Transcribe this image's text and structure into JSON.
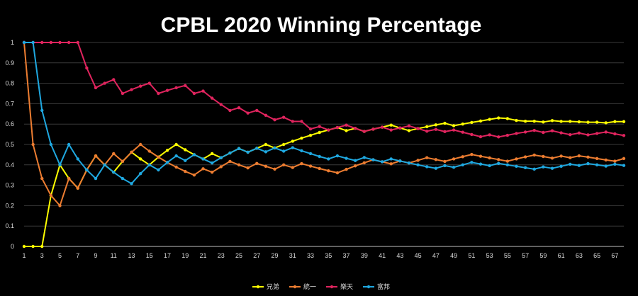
{
  "chart_data": {
    "type": "line",
    "title": "CPBL 2020 Winning Percentage",
    "xlabel": "",
    "ylabel": "",
    "ylim": [
      0,
      1
    ],
    "y_ticks": [
      "0",
      "0.1",
      "0.2",
      "0.3",
      "0.4",
      "0.5",
      "0.6",
      "0.7",
      "0.8",
      "0.9",
      "1"
    ],
    "x_ticks": [
      "1",
      "3",
      "5",
      "7",
      "9",
      "11",
      "13",
      "15",
      "17",
      "19",
      "21",
      "23",
      "25",
      "27",
      "29",
      "31",
      "33",
      "35",
      "37",
      "39",
      "41",
      "43",
      "45",
      "47",
      "49",
      "51",
      "53",
      "55",
      "57",
      "59",
      "61",
      "63",
      "65",
      "67"
    ],
    "x_count": 68,
    "grid": true,
    "legend_position": "bottom",
    "series": [
      {
        "name": "兄弟",
        "color": "#ffff00",
        "values": [
          0,
          0,
          0,
          0.25,
          0.4,
          0.333,
          0.286,
          0.375,
          0.444,
          0.4,
          0.364,
          0.417,
          0.462,
          0.429,
          0.4,
          0.438,
          0.471,
          0.5,
          0.474,
          0.45,
          0.429,
          0.455,
          0.435,
          0.458,
          0.48,
          0.462,
          0.481,
          0.5,
          0.483,
          0.5,
          0.516,
          0.531,
          0.545,
          0.559,
          0.571,
          0.583,
          0.568,
          0.579,
          0.564,
          0.575,
          0.585,
          0.595,
          0.581,
          0.568,
          0.578,
          0.587,
          0.596,
          0.604,
          0.592,
          0.6,
          0.608,
          0.615,
          0.623,
          0.63,
          0.627,
          0.618,
          0.614,
          0.614,
          0.61,
          0.617,
          0.613,
          0.613,
          0.611,
          0.609,
          0.609,
          0.606,
          0.612,
          0.612
        ]
      },
      {
        "name": "統一",
        "color": "#ed7d31",
        "values": [
          1,
          0.5,
          0.333,
          0.25,
          0.2,
          0.333,
          0.286,
          0.375,
          0.444,
          0.4,
          0.455,
          0.417,
          0.462,
          0.5,
          0.467,
          0.438,
          0.412,
          0.389,
          0.368,
          0.35,
          0.381,
          0.364,
          0.391,
          0.417,
          0.4,
          0.385,
          0.407,
          0.393,
          0.379,
          0.4,
          0.387,
          0.406,
          0.394,
          0.382,
          0.371,
          0.361,
          0.378,
          0.395,
          0.41,
          0.425,
          0.415,
          0.405,
          0.419,
          0.409,
          0.422,
          0.435,
          0.426,
          0.417,
          0.429,
          0.44,
          0.451,
          0.442,
          0.434,
          0.426,
          0.418,
          0.429,
          0.439,
          0.448,
          0.441,
          0.433,
          0.443,
          0.435,
          0.444,
          0.438,
          0.431,
          0.424,
          0.418,
          0.431
        ]
      },
      {
        "name": "樂天",
        "color": "#e0245e",
        "values": [
          1,
          1,
          1,
          1,
          1,
          1,
          1,
          0.875,
          0.778,
          0.8,
          0.818,
          0.75,
          0.769,
          0.786,
          0.8,
          0.75,
          0.765,
          0.778,
          0.789,
          0.75,
          0.762,
          0.727,
          0.696,
          0.667,
          0.68,
          0.654,
          0.667,
          0.643,
          0.621,
          0.633,
          0.613,
          0.613,
          0.576,
          0.588,
          0.571,
          0.583,
          0.595,
          0.579,
          0.564,
          0.575,
          0.585,
          0.571,
          0.581,
          0.591,
          0.578,
          0.565,
          0.574,
          0.563,
          0.571,
          0.56,
          0.549,
          0.538,
          0.547,
          0.537,
          0.545,
          0.554,
          0.561,
          0.569,
          0.559,
          0.567,
          0.557,
          0.548,
          0.556,
          0.547,
          0.554,
          0.561,
          0.552,
          0.544
        ]
      },
      {
        "name": "富邦",
        "color": "#1fa8e0",
        "values": [
          1,
          1,
          0.667,
          0.5,
          0.4,
          0.5,
          0.429,
          0.375,
          0.333,
          0.4,
          0.364,
          0.333,
          0.308,
          0.357,
          0.4,
          0.375,
          0.412,
          0.444,
          0.421,
          0.45,
          0.429,
          0.409,
          0.435,
          0.458,
          0.48,
          0.462,
          0.481,
          0.464,
          0.483,
          0.467,
          0.484,
          0.469,
          0.455,
          0.441,
          0.429,
          0.444,
          0.432,
          0.421,
          0.436,
          0.425,
          0.415,
          0.429,
          0.419,
          0.409,
          0.4,
          0.391,
          0.383,
          0.396,
          0.388,
          0.4,
          0.412,
          0.404,
          0.396,
          0.407,
          0.4,
          0.393,
          0.386,
          0.379,
          0.39,
          0.383,
          0.393,
          0.403,
          0.397,
          0.406,
          0.4,
          0.394,
          0.403,
          0.397
        ]
      }
    ]
  }
}
